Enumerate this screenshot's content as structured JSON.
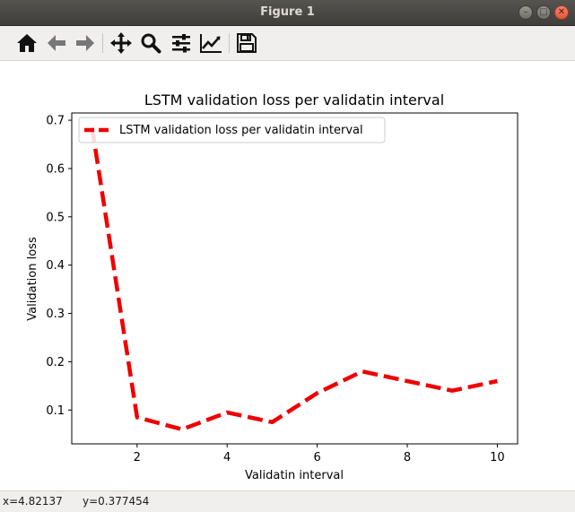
{
  "window": {
    "title": "Figure 1"
  },
  "toolbar": {
    "buttons": [
      {
        "icon": "home-icon"
      },
      {
        "icon": "back-arrow-icon"
      },
      {
        "icon": "forward-arrow-icon"
      },
      {
        "icon": "pan-move-icon"
      },
      {
        "icon": "zoom-magnifier-icon"
      },
      {
        "icon": "configure-subplots-icon"
      },
      {
        "icon": "edit-axis-curve-icon"
      },
      {
        "icon": "save-floppy-icon"
      }
    ]
  },
  "status": {
    "x_readout": "x=4.82137",
    "y_readout": "y=0.377454"
  },
  "colors": {
    "line": "#ee0000",
    "axes": "#000000"
  },
  "chart_data": {
    "type": "line",
    "title": "LSTM validation loss per validatin interval",
    "xlabel": "Validatin interval",
    "ylabel": "Validation loss",
    "xlim": [
      0.55,
      10.45
    ],
    "ylim": [
      0.03,
      0.715
    ],
    "xticks": [
      2,
      4,
      6,
      8,
      10
    ],
    "xtick_labels": [
      "2",
      "4",
      "6",
      "8",
      "10"
    ],
    "yticks": [
      0.1,
      0.2,
      0.3,
      0.4,
      0.5,
      0.6,
      0.7
    ],
    "ytick_labels": [
      "0.1",
      "0.2",
      "0.3",
      "0.4",
      "0.5",
      "0.6",
      "0.7"
    ],
    "grid": false,
    "legend_position": "upper left",
    "line_style": "dashed",
    "series": [
      {
        "name": "LSTM validation loss per validatin interval",
        "x": [
          1,
          2,
          3,
          4,
          5,
          6,
          7,
          8,
          9,
          10
        ],
        "y": [
          0.685,
          0.085,
          0.06,
          0.095,
          0.075,
          0.135,
          0.18,
          0.16,
          0.14,
          0.16
        ]
      }
    ]
  }
}
